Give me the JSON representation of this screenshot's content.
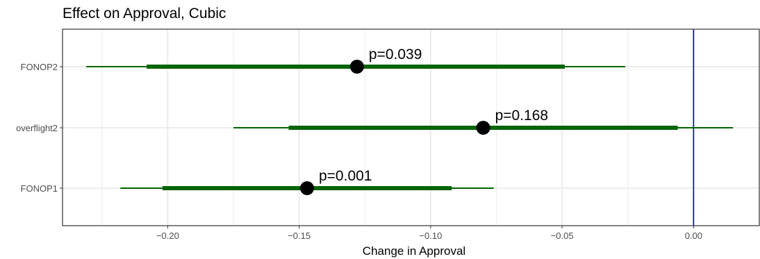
{
  "chart_data": {
    "type": "forest",
    "title": "Effect on Approval, Cubic",
    "xlabel": "Change in Approval",
    "ylabel": "",
    "xlim": [
      -0.24,
      0.025
    ],
    "x_ticks": [
      {
        "value": -0.2,
        "label": "−0.20"
      },
      {
        "value": -0.15,
        "label": "−0.15"
      },
      {
        "value": -0.1,
        "label": "−0.10"
      },
      {
        "value": -0.05,
        "label": "−0.05"
      },
      {
        "value": 0.0,
        "label": "0.00"
      }
    ],
    "reference_line": 0.0,
    "grid": true,
    "rows": [
      {
        "label": "FONOP2",
        "estimate": -0.128,
        "ci_inner": [
          -0.208,
          -0.049
        ],
        "ci_outer": [
          -0.231,
          -0.026
        ],
        "annotation": "p=0.039"
      },
      {
        "label": "overflight2",
        "estimate": -0.08,
        "ci_inner": [
          -0.154,
          -0.006
        ],
        "ci_outer": [
          -0.175,
          0.015
        ],
        "annotation": "p=0.168"
      },
      {
        "label": "FONOP1",
        "estimate": -0.147,
        "ci_inner": [
          -0.202,
          -0.092
        ],
        "ci_outer": [
          -0.218,
          -0.076
        ],
        "annotation": "p=0.001"
      }
    ],
    "colors": {
      "interval": "#006400",
      "point": "#000000",
      "reference": "#0000cc",
      "grid": "#ebebeb",
      "panel_border": "#333333"
    }
  }
}
